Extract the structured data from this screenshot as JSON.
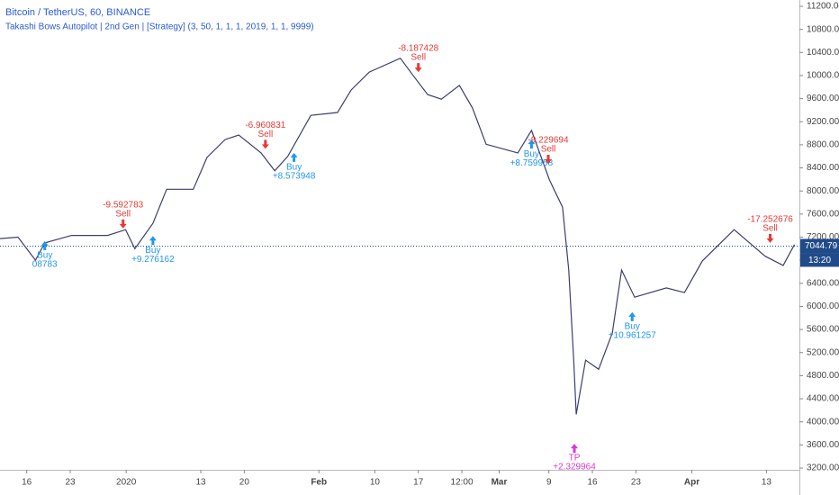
{
  "chart_data": {
    "type": "line",
    "title": "Bitcoin / TetherUS, 60, BINANCE",
    "subtitle": "Takashi Bows Autopilot | 2nd Gen | [Strategy] (3, 50, 1, 1, 1, 2019, 1, 1, 9999)",
    "x": [
      -4.3,
      -1.4,
      1.4,
      2.9,
      7.2,
      13.0,
      15.9,
      17.4,
      20.3,
      22.5,
      26.8,
      29.0,
      31.9,
      34.1,
      37.7,
      39.9,
      42.0,
      45.7,
      50.0,
      52.2,
      55.1,
      60.1,
      62.3,
      64.5,
      66.7,
      69.6,
      71.7,
      73.9,
      79.0,
      81.2,
      84.1,
      86.2,
      87.2,
      88.0,
      88.4,
      89.9,
      92.0,
      94.2,
      95.7,
      97.8,
      102.9,
      105.8,
      108.7,
      113.8,
      118.8,
      121.7,
      123.5
    ],
    "series": [
      {
        "name": "BTCUSDT",
        "color": "#3b3f6e",
        "values": [
          7175,
          7200,
          6800,
          7100,
          7230,
          7230,
          7330,
          7000,
          7440,
          8030,
          8030,
          8580,
          8890,
          8970,
          8660,
          8350,
          8600,
          9310,
          9360,
          9750,
          10060,
          10300,
          9980,
          9670,
          9590,
          9830,
          9440,
          8810,
          8660,
          9050,
          8190,
          7720,
          6630,
          5070,
          4130,
          5070,
          4910,
          5540,
          6630,
          6160,
          6320,
          6240,
          6790,
          7330,
          6870,
          6710,
          7070
        ]
      }
    ],
    "xlim": [
      -4.3,
      124.3
    ],
    "xticks": [
      {
        "value": 0,
        "label": "16"
      },
      {
        "value": 7,
        "label": "23"
      },
      {
        "value": 16,
        "label": "2020"
      },
      {
        "value": 28,
        "label": "13"
      },
      {
        "value": 35,
        "label": "20"
      },
      {
        "value": 47,
        "label": "Feb"
      },
      {
        "value": 56,
        "label": "10"
      },
      {
        "value": 63,
        "label": "17"
      },
      {
        "value": 70,
        "label": "12:00"
      },
      {
        "value": 76,
        "label": "Mar"
      },
      {
        "value": 84,
        "label": "9"
      },
      {
        "value": 91,
        "label": "16"
      },
      {
        "value": 98,
        "label": "23"
      },
      {
        "value": 107,
        "label": "Apr"
      },
      {
        "value": 119,
        "label": "13"
      }
    ],
    "ylim": [
      3200,
      11200
    ],
    "yticks": [
      {
        "value": 3200,
        "label": "3200.00"
      },
      {
        "value": 3600,
        "label": "3600.00"
      },
      {
        "value": 4000,
        "label": "4000.00"
      },
      {
        "value": 4400,
        "label": "4400.00"
      },
      {
        "value": 4800,
        "label": "4800.00"
      },
      {
        "value": 5200,
        "label": "5200.00"
      },
      {
        "value": 5600,
        "label": "5600.00"
      },
      {
        "value": 6000,
        "label": "6000.00"
      },
      {
        "value": 6400,
        "label": "6400.00"
      },
      {
        "value": 6800,
        "label": "6800.00"
      },
      {
        "value": 7200,
        "label": "7200.00"
      },
      {
        "value": 7600,
        "label": "7600.00"
      },
      {
        "value": 8000,
        "label": "8000.00"
      },
      {
        "value": 8400,
        "label": "8400.00"
      },
      {
        "value": 8800,
        "label": "8800.00"
      },
      {
        "value": 9200,
        "label": "9200.00"
      },
      {
        "value": 9600,
        "label": "9600.00"
      },
      {
        "value": 10000,
        "label": "10000.00"
      },
      {
        "value": 10400,
        "label": "10400.00"
      },
      {
        "value": 10800,
        "label": "10800.00"
      },
      {
        "value": 11200,
        "label": "11200.00"
      }
    ],
    "last_price": {
      "value": 7044.79,
      "label": "7044.79",
      "countdown": "13:20"
    },
    "annotations": [
      {
        "label": "Buy",
        "value": "08783",
        "x": 2.9,
        "y": 7130
      },
      {
        "label": "Sell",
        "value": "-9.592783",
        "x": 15.5,
        "y": 7350
      },
      {
        "label": "Buy",
        "value": "+9.276162",
        "x": 20.3,
        "y": 7220
      },
      {
        "label": "Sell",
        "value": "-6.960831",
        "x": 38.4,
        "y": 8730
      },
      {
        "label": "Buy",
        "value": "+8.573948",
        "x": 43.0,
        "y": 8660
      },
      {
        "label": "Sell",
        "value": "-8.187428",
        "x": 63.0,
        "y": 10060
      },
      {
        "label": "Buy",
        "value": "+8.759958",
        "x": 81.2,
        "y": 8890
      },
      {
        "label": "Sell",
        "value": "-9.229694",
        "x": 83.9,
        "y": 8470
      },
      {
        "label": "TP",
        "value": "+2.329964",
        "x": 88.1,
        "y": 3620
      },
      {
        "label": "Buy",
        "value": "+10.961257",
        "x": 97.4,
        "y": 5900
      },
      {
        "label": "Sell",
        "value": "-17.252676",
        "x": 119.6,
        "y": 7100
      }
    ]
  }
}
